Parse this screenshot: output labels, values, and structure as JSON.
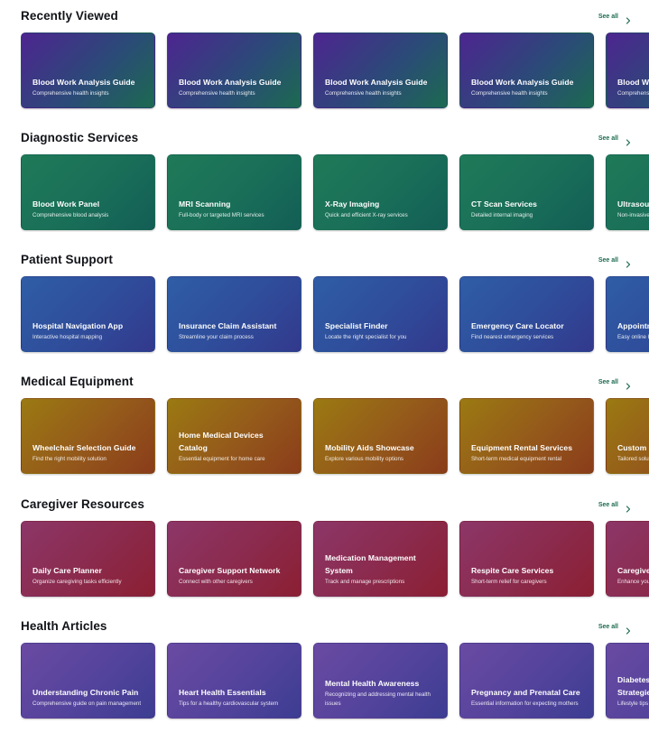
{
  "see_all_label": "See all",
  "sections": [
    {
      "id": "recently-viewed",
      "title": "Recently Viewed",
      "theme": "t-recent",
      "cards": [
        {
          "title": "Blood Work Analysis Guide",
          "subtitle": "Comprehensive health insights"
        },
        {
          "title": "Blood Work Analysis Guide",
          "subtitle": "Comprehensive health insights"
        },
        {
          "title": "Blood Work Analysis Guide",
          "subtitle": "Comprehensive health insights"
        },
        {
          "title": "Blood Work Analysis Guide",
          "subtitle": "Comprehensive health insights"
        },
        {
          "title": "Blood Work Analysis Guide",
          "subtitle": "Comprehensive health insights"
        }
      ]
    },
    {
      "id": "diagnostic-services",
      "title": "Diagnostic Services",
      "theme": "t-diag",
      "cards": [
        {
          "title": "Blood Work Panel",
          "subtitle": "Comprehensive blood analysis"
        },
        {
          "title": "MRI Scanning",
          "subtitle": "Full-body or targeted MRI services"
        },
        {
          "title": "X-Ray Imaging",
          "subtitle": "Quick and efficient X-ray services"
        },
        {
          "title": "CT Scan Services",
          "subtitle": "Detailed internal imaging"
        },
        {
          "title": "Ultrasound",
          "subtitle": "Non-invasive imaging"
        }
      ]
    },
    {
      "id": "patient-support",
      "title": "Patient Support",
      "theme": "t-patient",
      "cards": [
        {
          "title": "Hospital Navigation App",
          "subtitle": "Interactive hospital mapping"
        },
        {
          "title": "Insurance Claim Assistant",
          "subtitle": "Streamline your claim process"
        },
        {
          "title": "Specialist Finder",
          "subtitle": "Locate the right specialist for you"
        },
        {
          "title": "Emergency Care Locator",
          "subtitle": "Find nearest emergency services"
        },
        {
          "title": "Appointment Scheduler",
          "subtitle": "Easy online booking"
        }
      ]
    },
    {
      "id": "medical-equipment",
      "title": "Medical Equipment",
      "theme": "t-equip",
      "cards": [
        {
          "title": "Wheelchair Selection Guide",
          "subtitle": "Find the right mobility solution"
        },
        {
          "title": "Home Medical Devices Catalog",
          "subtitle": "Essential equipment for home care"
        },
        {
          "title": "Mobility Aids Showcase",
          "subtitle": "Explore various mobility options"
        },
        {
          "title": "Equipment Rental Services",
          "subtitle": "Short-term medical equipment rental"
        },
        {
          "title": "Custom Medical Furniture",
          "subtitle": "Tailored solutions"
        }
      ]
    },
    {
      "id": "caregiver-resources",
      "title": "Caregiver Resources",
      "theme": "t-care",
      "cards": [
        {
          "title": "Daily Care Planner",
          "subtitle": "Organize caregiving tasks efficiently"
        },
        {
          "title": "Caregiver Support Network",
          "subtitle": "Connect with other caregivers"
        },
        {
          "title": "Medication Management System",
          "subtitle": "Track and manage prescriptions"
        },
        {
          "title": "Respite Care Services",
          "subtitle": "Short-term relief for caregivers"
        },
        {
          "title": "Caregiver Training",
          "subtitle": "Enhance your skills"
        }
      ]
    },
    {
      "id": "health-articles",
      "title": "Health Articles",
      "theme": "t-article",
      "cards": [
        {
          "title": "Understanding Chronic Pain",
          "subtitle": "Comprehensive guide on pain management"
        },
        {
          "title": "Heart Health Essentials",
          "subtitle": "Tips for a healthy cardiovascular system"
        },
        {
          "title": "Mental Health Awareness",
          "subtitle": "Recognizing and addressing mental health issues"
        },
        {
          "title": "Pregnancy and Prenatal Care",
          "subtitle": "Essential information for expecting mothers"
        },
        {
          "title": "Diabetes Management Strategies",
          "subtitle": "Lifestyle tips"
        }
      ]
    }
  ]
}
